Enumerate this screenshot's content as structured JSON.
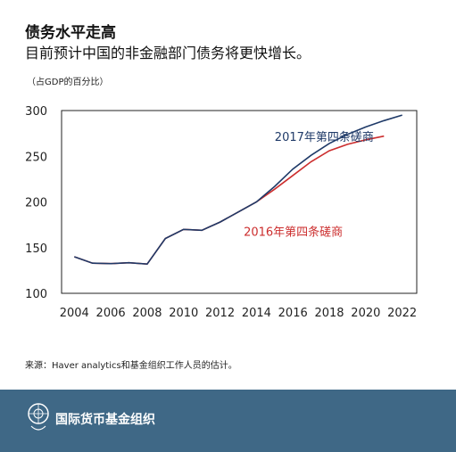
{
  "header": {
    "title": "债务水平走高",
    "subtitle": "目前预计中国的非金融部门债务将更快增长。",
    "unit": "（占GDP的百分比）"
  },
  "chart_data": {
    "type": "line",
    "xlim": [
      2003.3,
      2022.8
    ],
    "ylim": [
      100,
      300
    ],
    "xticks": [
      "2004",
      "2006",
      "2008",
      "2010",
      "2012",
      "2014",
      "2016",
      "2018",
      "2020",
      "2022"
    ],
    "yticks": [
      "100",
      "150",
      "200",
      "250",
      "300"
    ],
    "grid": false,
    "series": [
      {
        "name": "2017年第四条磋商",
        "color": "#1f3a68",
        "points": [
          [
            2004,
            140
          ],
          [
            2005,
            133
          ],
          [
            2006,
            132.5
          ],
          [
            2007,
            133.5
          ],
          [
            2008,
            132
          ],
          [
            2009,
            160
          ],
          [
            2010,
            170
          ],
          [
            2011,
            169
          ],
          [
            2012,
            178
          ],
          [
            2013,
            189
          ],
          [
            2014,
            200
          ],
          [
            2015,
            217
          ],
          [
            2016,
            236
          ],
          [
            2017,
            251
          ],
          [
            2018,
            264
          ],
          [
            2019,
            274
          ],
          [
            2020,
            282
          ],
          [
            2021,
            289
          ],
          [
            2022,
            295
          ]
        ]
      },
      {
        "name": "2016年第四条磋商",
        "color": "#cc2e2e",
        "points": [
          [
            2004,
            140
          ],
          [
            2005,
            133
          ],
          [
            2006,
            132.5
          ],
          [
            2007,
            133.5
          ],
          [
            2008,
            132
          ],
          [
            2009,
            160
          ],
          [
            2010,
            170
          ],
          [
            2011,
            169
          ],
          [
            2012,
            178
          ],
          [
            2013,
            189
          ],
          [
            2014,
            200
          ],
          [
            2015,
            214
          ],
          [
            2016,
            229
          ],
          [
            2017,
            244
          ],
          [
            2018,
            256
          ],
          [
            2019,
            263
          ],
          [
            2020,
            268
          ],
          [
            2021,
            272
          ]
        ]
      }
    ]
  },
  "footer": {
    "source": "来源：Haver analytics和基金组织工作人员的估计。",
    "org_name": "国际货币基金组织",
    "accent": "#3f6886"
  }
}
